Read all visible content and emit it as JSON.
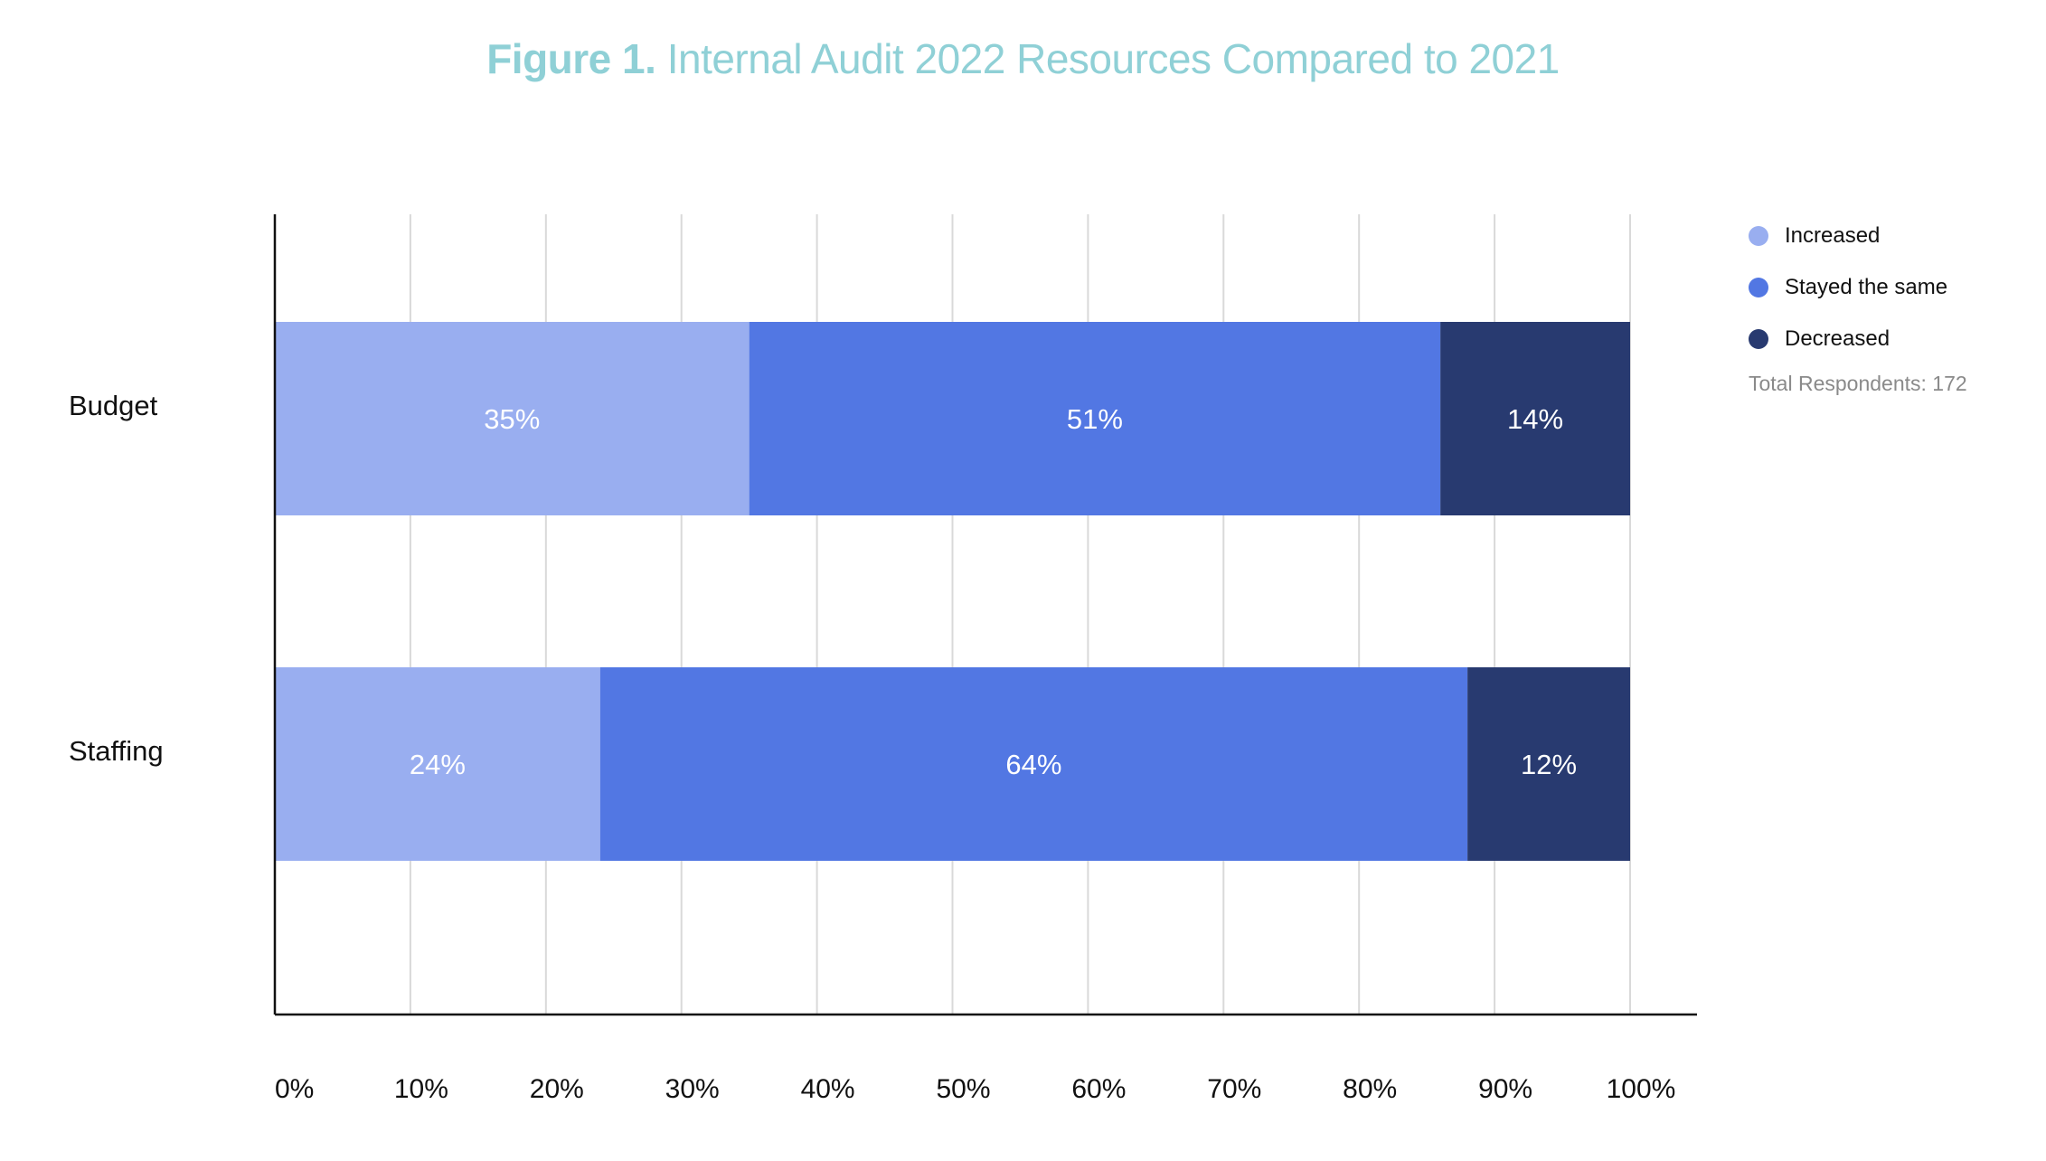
{
  "title": {
    "prefix": "Figure 1.",
    "main": "Internal Audit 2022 Resources Compared to 2021"
  },
  "colors": {
    "title": "#8fd0d6",
    "increased": "#99aef0",
    "stayed": "#5277e3",
    "decreased": "#283a70",
    "grid": "#d9d9d9",
    "axis": "#111111"
  },
  "legend_note": "Total Respondents: 172",
  "chart_data": {
    "type": "bar",
    "orientation": "horizontal",
    "stacked": true,
    "categories": [
      "Budget",
      "Staffing"
    ],
    "series": [
      {
        "name": "Increased",
        "values": [
          35,
          24
        ],
        "labels": [
          "35%",
          "24%"
        ],
        "color": "#99aef0"
      },
      {
        "name": "Stayed the same",
        "values": [
          51,
          64
        ],
        "labels": [
          "51%",
          "64%"
        ],
        "color": "#5277e3"
      },
      {
        "name": "Decreased",
        "values": [
          14,
          12
        ],
        "labels": [
          "14%",
          "12%"
        ],
        "color": "#283a70"
      }
    ],
    "xticks": [
      "0%",
      "10%",
      "20%",
      "30%",
      "40%",
      "50%",
      "60%",
      "70%",
      "80%",
      "90%",
      "100%"
    ],
    "xlim": [
      0,
      100
    ],
    "grid": true,
    "legend_position": "top-right"
  }
}
